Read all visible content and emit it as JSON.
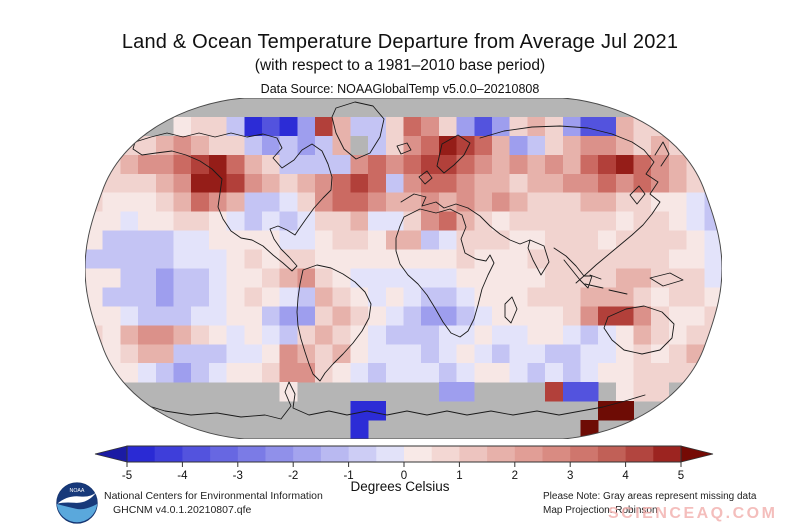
{
  "header": {
    "title": "Land & Ocean Temperature Departure from Average Jul 2021",
    "subtitle": "(with respect to a 1981–2010 base period)",
    "data_source": "Data Source: NOAAGlobalTemp v5.0.0–20210808"
  },
  "map": {
    "projection": "Robinson",
    "missing_color": "#b5b5b5",
    "outline_color": "#4a4a4a",
    "coast_color": "#1a1a1a",
    "palette": {
      "a": "#2c2cd6",
      "b": "#5353de",
      "c": "#7b7be6",
      "d": "#9e9eee",
      "e": "#c4c4f4",
      "f": "#e3e3fa",
      "g": "#f7e7e5",
      "h": "#f1d3cf",
      "i": "#e7b2ab",
      "j": "#db918a",
      "k": "#cb6a62",
      "l": "#b2403a",
      "m": "#951d18",
      "n": "#6e0c05"
    }
  },
  "chart_data": {
    "type": "heatmap",
    "title": "Land & Ocean Temperature Departure from Average Jul 2021",
    "units": "Degrees Celsius",
    "base_period": "1981–2010",
    "month": "Jul 2021",
    "value_range": [
      -5,
      5
    ],
    "colorbar_ticks": [
      -5,
      -4,
      -3,
      -2,
      -1,
      0,
      1,
      2,
      3,
      4,
      5
    ],
    "grid": {
      "cols": 36,
      "rows_count": 18,
      "description": "Approx. 10x10 degree anomaly cells; row 0 = 90-80N ... row 17 = 80-90S; col 0 = 180-170W ... col 35 = 170-180E; '0' = missing data (gray)",
      "value_map": {
        "a": -4.5,
        "b": -3,
        "c": -2,
        "d": -1.5,
        "e": -0.8,
        "f": -0.3,
        "g": 0.3,
        "h": 0.8,
        "i": 1.5,
        "j": 2.2,
        "k": 3,
        "l": 4,
        "m": 4.6,
        "n": 5
      },
      "rows": [
        "000000000000000000000000000000000000",
        "00000ghheabadlieehkjhdbdhihdbbihhg00",
        "gghhijihhededei0ehjkmlkidehijjihihgg",
        "hhijjklmkiheeeejkjkllkjijijiklmkjihh",
        "ghhhijmmljihijklkejkkjiihiijjkjkjihg",
        "hggghikjieefhjkkjiijijijihhhiihhggfe",
        "ggfgghhgfefefhhiffhjkihghhhhhhghhgfe",
        "geeeeffggggffghhgiiefhhhgghhhghhhhgf",
        "eeeeefffghghhgggggggghggghhhhhhhhggf",
        "ggeedeefgghijhgffffffggggghhhhiihhhf",
        "geeedeefghgfeihgfgfeefggghhhiiihghhg",
        "ggfeeeffggeddhihgfeddefgggghjlljhggh",
        "hgijjihgfgfehihgfeeeffgffggfefgihghh",
        "gghiieeeffgjihigfffefgfeffeeffghghih",
        "hggfedefgghjjhgfefffefggfefefgghhhhh",
        "00000000000g00000000dd0000lbb0ghh000",
        "000000000000000aa000000000000nn00000",
        "000000000000000a000000000000n0000000"
      ]
    }
  },
  "colorbar": {
    "ticks": [
      "-5",
      "-4",
      "-3",
      "-2",
      "-1",
      "0",
      "1",
      "2",
      "3",
      "4",
      "5"
    ],
    "label": "Degrees Celsius",
    "segments": [
      "#2a2ad4",
      "#3e3eda",
      "#5353de",
      "#6767e2",
      "#7b7be6",
      "#9090ea",
      "#a4a4ee",
      "#b9b9f1",
      "#cdcdf5",
      "#e2e2f9",
      "#f8e9e7",
      "#f3d7d3",
      "#edc4bf",
      "#e7b1aa",
      "#e19e96",
      "#d98b82",
      "#cf766d",
      "#c16057",
      "#b2453f",
      "#9c2420"
    ],
    "left_arrow": "#1b1ba4",
    "right_arrow": "#750a05"
  },
  "footer": {
    "logo_text": "NOAA",
    "org": "National Centers for Environmental Information",
    "dataset": "GHCNM v4.0.1.20210807.qfe",
    "note": "Please Note: Gray areas represent missing data",
    "projection": "Map Projection: Robinson",
    "watermark": "SCIENCEAQ.COM"
  }
}
